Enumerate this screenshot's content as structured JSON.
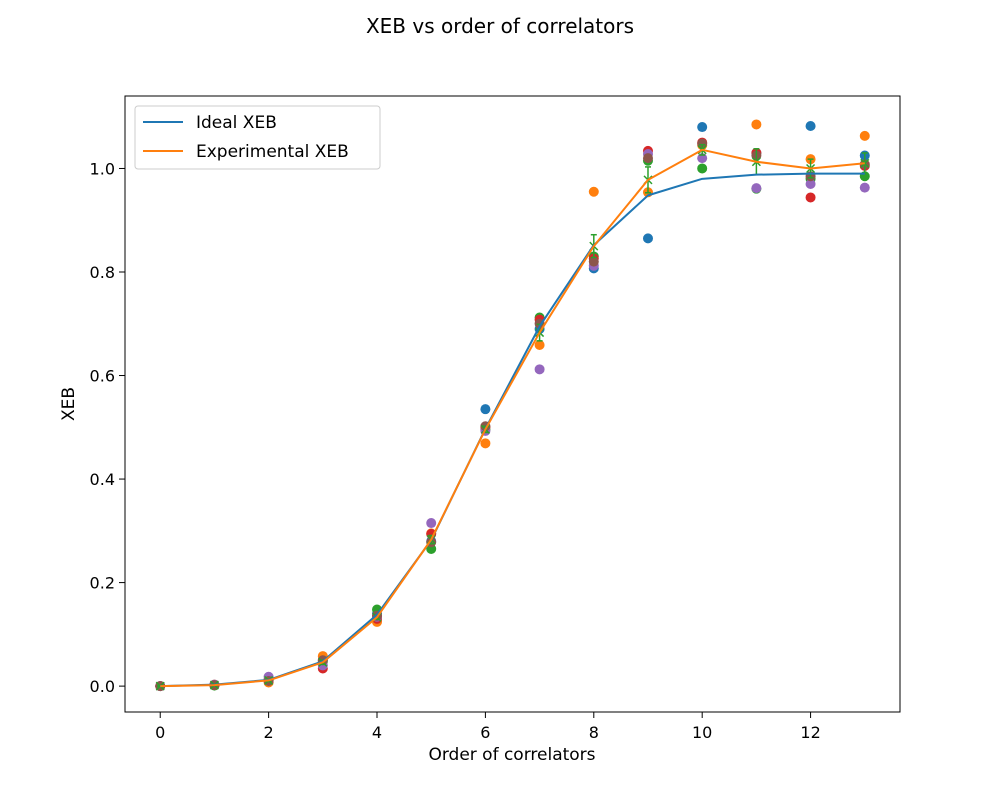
{
  "chart_data": {
    "type": "line",
    "title": "XEB vs order of correlators",
    "xlabel": "Order of correlators",
    "ylabel": "XEB",
    "xlim": [
      -0.65,
      13.65
    ],
    "ylim": [
      -0.05,
      1.14
    ],
    "xticks": [
      0,
      2,
      4,
      6,
      8,
      10,
      12
    ],
    "yticks": [
      0.0,
      0.2,
      0.4,
      0.6,
      0.8,
      1.0
    ],
    "grid": false,
    "legend_position": "top-left",
    "x": [
      0,
      1,
      2,
      3,
      4,
      5,
      6,
      7,
      8,
      9,
      10,
      11,
      12,
      13
    ],
    "series": [
      {
        "name": "Ideal XEB",
        "color": "#1f77b4",
        "values": [
          0.0,
          0.003,
          0.012,
          0.048,
          0.138,
          0.282,
          0.497,
          0.695,
          0.852,
          0.948,
          0.98,
          0.988,
          0.99,
          0.99
        ]
      },
      {
        "name": "Experimental XEB",
        "color": "#ff7f0e",
        "values": [
          0.0,
          0.002,
          0.011,
          0.046,
          0.133,
          0.283,
          0.496,
          0.683,
          0.85,
          0.978,
          1.036,
          1.013,
          1.0,
          1.01
        ]
      }
    ],
    "error_bars": {
      "color": "#2ca02c",
      "marker": "x",
      "points": [
        {
          "x": 0,
          "y": 0.0,
          "err": 0.001
        },
        {
          "x": 1,
          "y": 0.002,
          "err": 0.001
        },
        {
          "x": 2,
          "y": 0.011,
          "err": 0.002
        },
        {
          "x": 3,
          "y": 0.046,
          "err": 0.004
        },
        {
          "x": 4,
          "y": 0.133,
          "err": 0.004
        },
        {
          "x": 5,
          "y": 0.283,
          "err": 0.008
        },
        {
          "x": 6,
          "y": 0.496,
          "err": 0.006
        },
        {
          "x": 7,
          "y": 0.683,
          "err": 0.016
        },
        {
          "x": 8,
          "y": 0.85,
          "err": 0.022
        },
        {
          "x": 9,
          "y": 0.978,
          "err": 0.025
        },
        {
          "x": 10,
          "y": 1.036,
          "err": 0.01
        },
        {
          "x": 11,
          "y": 1.013,
          "err": 0.025
        },
        {
          "x": 12,
          "y": 1.0,
          "err": 0.018
        },
        {
          "x": 13,
          "y": 1.01,
          "err": 0.02
        }
      ]
    },
    "scatter_groups": [
      {
        "color": "#1f77b4",
        "values": [
          0.0,
          0.002,
          0.012,
          0.05,
          0.14,
          0.28,
          0.535,
          0.69,
          0.807,
          0.865,
          1.08,
          1.03,
          1.082,
          1.025
        ]
      },
      {
        "color": "#ff7f0e",
        "values": [
          0.0,
          0.003,
          0.007,
          0.058,
          0.124,
          0.295,
          0.469,
          0.659,
          0.955,
          0.954,
          1.045,
          1.085,
          1.018,
          1.063
        ]
      },
      {
        "color": "#2ca02c",
        "values": [
          0.0,
          0.001,
          0.012,
          0.047,
          0.148,
          0.265,
          0.496,
          0.712,
          0.83,
          1.015,
          1.0,
          0.961,
          0.98,
          0.985
        ]
      },
      {
        "color": "#d62728",
        "values": [
          0.0,
          0.002,
          0.011,
          0.034,
          0.13,
          0.294,
          0.5,
          0.708,
          0.826,
          1.034,
          1.05,
          1.03,
          0.944,
          1.005
        ]
      },
      {
        "color": "#9467bd",
        "values": [
          0.0,
          0.003,
          0.018,
          0.04,
          0.134,
          0.315,
          0.493,
          0.612,
          0.812,
          1.028,
          1.02,
          0.962,
          0.97,
          0.963
        ]
      },
      {
        "color": "#8c564b",
        "values": [
          0.0,
          0.002,
          0.01,
          0.05,
          0.136,
          0.278,
          0.502,
          0.7,
          0.82,
          1.02,
          1.048,
          1.025,
          0.985,
          1.008
        ]
      }
    ]
  }
}
